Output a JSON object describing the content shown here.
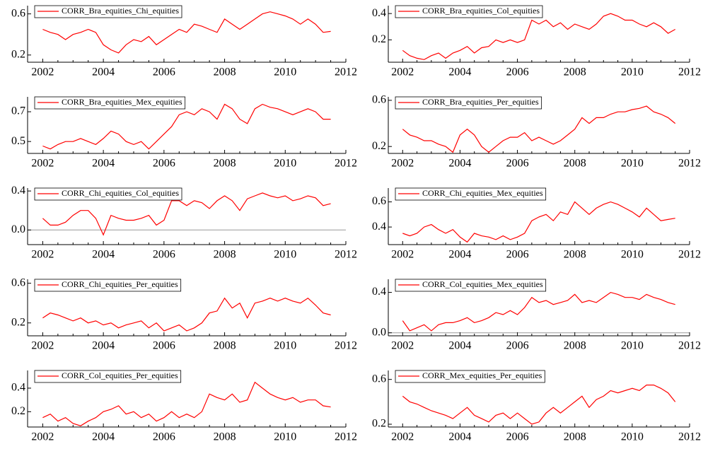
{
  "chart_data": [
    {
      "type": "line",
      "x": [
        2002,
        2002.25,
        2002.5,
        2002.75,
        2003,
        2003.25,
        2003.5,
        2003.75,
        2004,
        2004.25,
        2004.5,
        2004.75,
        2005,
        2005.25,
        2005.5,
        2005.75,
        2006,
        2006.25,
        2006.5,
        2006.75,
        2007,
        2007.25,
        2007.5,
        2007.75,
        2008,
        2008.25,
        2008.5,
        2008.75,
        2009,
        2009.25,
        2009.5,
        2009.75,
        2010,
        2010.25,
        2010.5,
        2010.75,
        2011,
        2011.25,
        2011.5
      ],
      "series": [
        {
          "name": "CORR_Bra_equities_Chi_equities",
          "color": "#ff0000",
          "values": [
            0.45,
            0.42,
            0.4,
            0.35,
            0.4,
            0.42,
            0.45,
            0.42,
            0.3,
            0.25,
            0.22,
            0.3,
            0.35,
            0.33,
            0.38,
            0.3,
            0.35,
            0.4,
            0.45,
            0.42,
            0.5,
            0.48,
            0.45,
            0.42,
            0.55,
            0.5,
            0.45,
            0.5,
            0.55,
            0.6,
            0.62,
            0.6,
            0.58,
            0.55,
            0.5,
            0.55,
            0.5,
            0.42,
            0.43
          ]
        }
      ],
      "xlim": [
        2001.5,
        2012
      ],
      "xticks": [
        2002,
        2004,
        2006,
        2008,
        2010,
        2012
      ],
      "ylim": [
        0.13,
        0.68
      ],
      "yticks": [
        0.2,
        0.6
      ],
      "legend": "upper left"
    },
    {
      "type": "line",
      "x": [
        2002,
        2002.25,
        2002.5,
        2002.75,
        2003,
        2003.25,
        2003.5,
        2003.75,
        2004,
        2004.25,
        2004.5,
        2004.75,
        2005,
        2005.25,
        2005.5,
        2005.75,
        2006,
        2006.25,
        2006.5,
        2006.75,
        2007,
        2007.25,
        2007.5,
        2007.75,
        2008,
        2008.25,
        2008.5,
        2008.75,
        2009,
        2009.25,
        2009.5,
        2009.75,
        2010,
        2010.25,
        2010.5,
        2010.75,
        2011,
        2011.25,
        2011.5
      ],
      "series": [
        {
          "name": "CORR_Bra_equities_Col_equities",
          "color": "#ff0000",
          "values": [
            0.12,
            0.08,
            0.06,
            0.05,
            0.08,
            0.1,
            0.06,
            0.1,
            0.12,
            0.15,
            0.1,
            0.14,
            0.15,
            0.2,
            0.18,
            0.2,
            0.18,
            0.2,
            0.35,
            0.32,
            0.35,
            0.3,
            0.33,
            0.28,
            0.32,
            0.3,
            0.28,
            0.32,
            0.38,
            0.4,
            0.38,
            0.35,
            0.35,
            0.32,
            0.3,
            0.33,
            0.3,
            0.25,
            0.28
          ]
        }
      ],
      "xlim": [
        2001.5,
        2012
      ],
      "xticks": [
        2002,
        2004,
        2006,
        2008,
        2010,
        2012
      ],
      "ylim": [
        0.03,
        0.46
      ],
      "yticks": [
        0.2,
        0.4
      ],
      "legend": "upper left"
    },
    {
      "type": "line",
      "x": [
        2002,
        2002.25,
        2002.5,
        2002.75,
        2003,
        2003.25,
        2003.5,
        2003.75,
        2004,
        2004.25,
        2004.5,
        2004.75,
        2005,
        2005.25,
        2005.5,
        2005.75,
        2006,
        2006.25,
        2006.5,
        2006.75,
        2007,
        2007.25,
        2007.5,
        2007.75,
        2008,
        2008.25,
        2008.5,
        2008.75,
        2009,
        2009.25,
        2009.5,
        2009.75,
        2010,
        2010.25,
        2010.5,
        2010.75,
        2011,
        2011.25,
        2011.5
      ],
      "series": [
        {
          "name": "CORR_Bra_equities_Mex_equities",
          "color": "#ff0000",
          "values": [
            0.47,
            0.45,
            0.48,
            0.5,
            0.5,
            0.52,
            0.5,
            0.48,
            0.52,
            0.57,
            0.55,
            0.5,
            0.48,
            0.5,
            0.45,
            0.5,
            0.55,
            0.6,
            0.68,
            0.7,
            0.68,
            0.72,
            0.7,
            0.65,
            0.75,
            0.72,
            0.65,
            0.62,
            0.72,
            0.75,
            0.73,
            0.72,
            0.7,
            0.68,
            0.7,
            0.72,
            0.7,
            0.65,
            0.65
          ]
        }
      ],
      "xlim": [
        2001.5,
        2012
      ],
      "xticks": [
        2002,
        2004,
        2006,
        2008,
        2010,
        2012
      ],
      "ylim": [
        0.42,
        0.8
      ],
      "yticks": [
        0.5,
        0.7
      ],
      "legend": "upper left"
    },
    {
      "type": "line",
      "x": [
        2002,
        2002.25,
        2002.5,
        2002.75,
        2003,
        2003.25,
        2003.5,
        2003.75,
        2004,
        2004.25,
        2004.5,
        2004.75,
        2005,
        2005.25,
        2005.5,
        2005.75,
        2006,
        2006.25,
        2006.5,
        2006.75,
        2007,
        2007.25,
        2007.5,
        2007.75,
        2008,
        2008.25,
        2008.5,
        2008.75,
        2009,
        2009.25,
        2009.5,
        2009.75,
        2010,
        2010.25,
        2010.5,
        2010.75,
        2011,
        2011.25,
        2011.5
      ],
      "series": [
        {
          "name": "CORR_Bra_equities_Per_equities",
          "color": "#ff0000",
          "values": [
            0.35,
            0.3,
            0.28,
            0.25,
            0.25,
            0.22,
            0.2,
            0.15,
            0.3,
            0.35,
            0.3,
            0.2,
            0.15,
            0.2,
            0.25,
            0.28,
            0.28,
            0.32,
            0.25,
            0.28,
            0.25,
            0.22,
            0.25,
            0.3,
            0.35,
            0.45,
            0.4,
            0.45,
            0.45,
            0.48,
            0.5,
            0.5,
            0.52,
            0.53,
            0.55,
            0.5,
            0.48,
            0.45,
            0.4
          ]
        }
      ],
      "xlim": [
        2001.5,
        2012
      ],
      "xticks": [
        2002,
        2004,
        2006,
        2008,
        2010,
        2012
      ],
      "ylim": [
        0.14,
        0.63
      ],
      "yticks": [
        0.2,
        0.6
      ],
      "legend": "upper left"
    },
    {
      "type": "line",
      "x": [
        2002,
        2002.25,
        2002.5,
        2002.75,
        2003,
        2003.25,
        2003.5,
        2003.75,
        2004,
        2004.25,
        2004.5,
        2004.75,
        2005,
        2005.25,
        2005.5,
        2005.75,
        2006,
        2006.25,
        2006.5,
        2006.75,
        2007,
        2007.25,
        2007.5,
        2007.75,
        2008,
        2008.25,
        2008.5,
        2008.75,
        2009,
        2009.25,
        2009.5,
        2009.75,
        2010,
        2010.25,
        2010.5,
        2010.75,
        2011,
        2011.25,
        2011.5
      ],
      "series": [
        {
          "name": "CORR_Chi_equities_Col_equities",
          "color": "#ff0000",
          "values": [
            0.12,
            0.05,
            0.05,
            0.08,
            0.15,
            0.2,
            0.2,
            0.12,
            -0.05,
            0.15,
            0.12,
            0.1,
            0.1,
            0.12,
            0.15,
            0.05,
            0.1,
            0.3,
            0.3,
            0.25,
            0.3,
            0.28,
            0.22,
            0.3,
            0.35,
            0.3,
            0.2,
            0.32,
            0.35,
            0.38,
            0.35,
            0.33,
            0.35,
            0.3,
            0.32,
            0.35,
            0.33,
            0.25,
            0.27
          ]
        }
      ],
      "xlim": [
        2001.5,
        2012
      ],
      "xticks": [
        2002,
        2004,
        2006,
        2008,
        2010,
        2012
      ],
      "ylim": [
        -0.15,
        0.43
      ],
      "yticks": [
        {
          "value": 0,
          "label": "0.0"
        },
        0.4
      ],
      "legend": "upper left"
    },
    {
      "type": "line",
      "x": [
        2002,
        2002.25,
        2002.5,
        2002.75,
        2003,
        2003.25,
        2003.5,
        2003.75,
        2004,
        2004.25,
        2004.5,
        2004.75,
        2005,
        2005.25,
        2005.5,
        2005.75,
        2006,
        2006.25,
        2006.5,
        2006.75,
        2007,
        2007.25,
        2007.5,
        2007.75,
        2008,
        2008.25,
        2008.5,
        2008.75,
        2009,
        2009.25,
        2009.5,
        2009.75,
        2010,
        2010.25,
        2010.5,
        2010.75,
        2011,
        2011.25,
        2011.5
      ],
      "series": [
        {
          "name": "CORR_Chi_equities_Mex_equities",
          "color": "#ff0000",
          "values": [
            0.35,
            0.33,
            0.35,
            0.4,
            0.42,
            0.38,
            0.35,
            0.38,
            0.32,
            0.28,
            0.35,
            0.33,
            0.32,
            0.3,
            0.33,
            0.3,
            0.32,
            0.35,
            0.45,
            0.48,
            0.5,
            0.45,
            0.52,
            0.5,
            0.6,
            0.55,
            0.5,
            0.55,
            0.58,
            0.6,
            0.58,
            0.55,
            0.52,
            0.48,
            0.55,
            0.5,
            0.45,
            0.46,
            0.47
          ]
        }
      ],
      "xlim": [
        2001.5,
        2012
      ],
      "xticks": [
        2002,
        2004,
        2006,
        2008,
        2010,
        2012
      ],
      "ylim": [
        0.26,
        0.71
      ],
      "yticks": [
        0.4,
        0.6
      ],
      "legend": "upper left"
    },
    {
      "type": "line",
      "x": [
        2002,
        2002.25,
        2002.5,
        2002.75,
        2003,
        2003.25,
        2003.5,
        2003.75,
        2004,
        2004.25,
        2004.5,
        2004.75,
        2005,
        2005.25,
        2005.5,
        2005.75,
        2006,
        2006.25,
        2006.5,
        2006.75,
        2007,
        2007.25,
        2007.5,
        2007.75,
        2008,
        2008.25,
        2008.5,
        2008.75,
        2009,
        2009.25,
        2009.5,
        2009.75,
        2010,
        2010.25,
        2010.5,
        2010.75,
        2011,
        2011.25,
        2011.5
      ],
      "series": [
        {
          "name": "CORR_Chi_equities_Per_equities",
          "color": "#ff0000",
          "values": [
            0.25,
            0.3,
            0.28,
            0.25,
            0.22,
            0.25,
            0.2,
            0.22,
            0.18,
            0.2,
            0.15,
            0.18,
            0.2,
            0.22,
            0.15,
            0.2,
            0.12,
            0.15,
            0.18,
            0.12,
            0.15,
            0.2,
            0.3,
            0.32,
            0.45,
            0.35,
            0.4,
            0.25,
            0.4,
            0.42,
            0.45,
            0.42,
            0.45,
            0.42,
            0.4,
            0.45,
            0.38,
            0.3,
            0.28
          ]
        }
      ],
      "xlim": [
        2001.5,
        2012
      ],
      "xticks": [
        2002,
        2004,
        2006,
        2008,
        2010,
        2012
      ],
      "ylim": [
        0.07,
        0.64
      ],
      "yticks": [
        0.2,
        0.6
      ],
      "legend": "upper left"
    },
    {
      "type": "line",
      "x": [
        2002,
        2002.25,
        2002.5,
        2002.75,
        2003,
        2003.25,
        2003.5,
        2003.75,
        2004,
        2004.25,
        2004.5,
        2004.75,
        2005,
        2005.25,
        2005.5,
        2005.75,
        2006,
        2006.25,
        2006.5,
        2006.75,
        2007,
        2007.25,
        2007.5,
        2007.75,
        2008,
        2008.25,
        2008.5,
        2008.75,
        2009,
        2009.25,
        2009.5,
        2009.75,
        2010,
        2010.25,
        2010.5,
        2010.75,
        2011,
        2011.25,
        2011.5
      ],
      "series": [
        {
          "name": "CORR_Col_equities_Mex_equities",
          "color": "#ff0000",
          "values": [
            0.12,
            0.02,
            0.05,
            0.08,
            0.02,
            0.08,
            0.1,
            0.1,
            0.12,
            0.15,
            0.1,
            0.12,
            0.15,
            0.2,
            0.18,
            0.22,
            0.18,
            0.25,
            0.35,
            0.3,
            0.32,
            0.28,
            0.3,
            0.32,
            0.38,
            0.3,
            0.32,
            0.3,
            0.35,
            0.4,
            0.38,
            0.35,
            0.35,
            0.33,
            0.38,
            0.35,
            0.33,
            0.3,
            0.28
          ]
        }
      ],
      "xlim": [
        2001.5,
        2012
      ],
      "xticks": [
        2002,
        2004,
        2006,
        2008,
        2010,
        2012
      ],
      "ylim": [
        -0.03,
        0.53
      ],
      "yticks": [
        {
          "value": 0,
          "label": "0.0"
        },
        0.4
      ],
      "legend": "upper left"
    },
    {
      "type": "line",
      "x": [
        2002,
        2002.25,
        2002.5,
        2002.75,
        2003,
        2003.25,
        2003.5,
        2003.75,
        2004,
        2004.25,
        2004.5,
        2004.75,
        2005,
        2005.25,
        2005.5,
        2005.75,
        2006,
        2006.25,
        2006.5,
        2006.75,
        2007,
        2007.25,
        2007.5,
        2007.75,
        2008,
        2008.25,
        2008.5,
        2008.75,
        2009,
        2009.25,
        2009.5,
        2009.75,
        2010,
        2010.25,
        2010.5,
        2010.75,
        2011,
        2011.25,
        2011.5
      ],
      "series": [
        {
          "name": "CORR_Col_equities_Per_equities",
          "color": "#ff0000",
          "values": [
            0.15,
            0.18,
            0.12,
            0.15,
            0.1,
            0.08,
            0.12,
            0.15,
            0.2,
            0.22,
            0.25,
            0.18,
            0.2,
            0.15,
            0.18,
            0.12,
            0.15,
            0.2,
            0.15,
            0.18,
            0.15,
            0.2,
            0.35,
            0.32,
            0.3,
            0.35,
            0.28,
            0.3,
            0.45,
            0.4,
            0.35,
            0.32,
            0.3,
            0.32,
            0.28,
            0.3,
            0.3,
            0.25,
            0.24
          ]
        }
      ],
      "xlim": [
        2001.5,
        2012
      ],
      "xticks": [
        2002,
        2004,
        2006,
        2008,
        2010,
        2012
      ],
      "ylim": [
        0.07,
        0.55
      ],
      "yticks": [
        0.2,
        0.4
      ],
      "legend": "upper left"
    },
    {
      "type": "line",
      "x": [
        2002,
        2002.25,
        2002.5,
        2002.75,
        2003,
        2003.25,
        2003.5,
        2003.75,
        2004,
        2004.25,
        2004.5,
        2004.75,
        2005,
        2005.25,
        2005.5,
        2005.75,
        2006,
        2006.25,
        2006.5,
        2006.75,
        2007,
        2007.25,
        2007.5,
        2007.75,
        2008,
        2008.25,
        2008.5,
        2008.75,
        2009,
        2009.25,
        2009.5,
        2009.75,
        2010,
        2010.25,
        2010.5,
        2010.75,
        2011,
        2011.25,
        2011.5
      ],
      "series": [
        {
          "name": "CORR_Mex_equities_Per_equities",
          "color": "#ff0000",
          "values": [
            0.45,
            0.4,
            0.38,
            0.35,
            0.32,
            0.3,
            0.28,
            0.25,
            0.3,
            0.35,
            0.28,
            0.25,
            0.22,
            0.28,
            0.3,
            0.25,
            0.3,
            0.25,
            0.2,
            0.22,
            0.3,
            0.35,
            0.3,
            0.35,
            0.4,
            0.45,
            0.35,
            0.42,
            0.45,
            0.5,
            0.48,
            0.5,
            0.52,
            0.5,
            0.55,
            0.55,
            0.52,
            0.48,
            0.4
          ]
        }
      ],
      "xlim": [
        2001.5,
        2012
      ],
      "xticks": [
        2002,
        2004,
        2006,
        2008,
        2010,
        2012
      ],
      "ylim": [
        0.175,
        0.68
      ],
      "yticks": [
        0.2,
        0.6
      ],
      "legend": "upper left"
    }
  ]
}
